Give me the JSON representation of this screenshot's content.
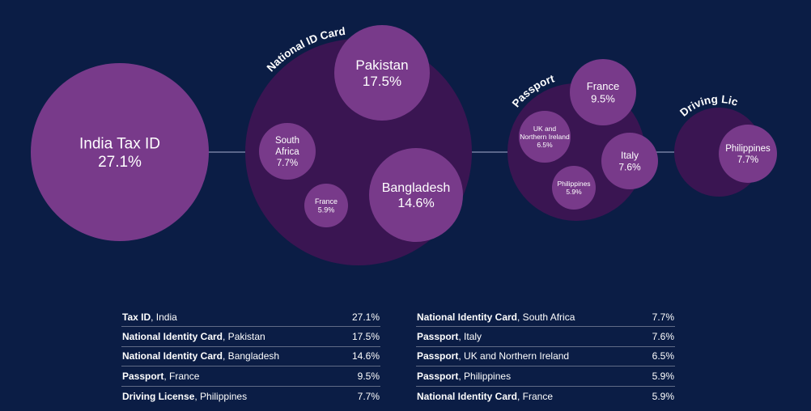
{
  "colors": {
    "background": "#0b1d45",
    "group_bubble": "#3a1552",
    "item_bubble": "#783a8a",
    "connector": "#8a93b5",
    "text": "#ffffff"
  },
  "chart_data": {
    "type": "bubble",
    "groups": [
      {
        "name": "",
        "items": [
          {
            "label": "India Tax ID",
            "value": 27.1,
            "value_label": "27.1%"
          }
        ]
      },
      {
        "name": "National ID Card",
        "items": [
          {
            "label": "Pakistan",
            "value": 17.5,
            "value_label": "17.5%"
          },
          {
            "label": "South Africa",
            "value": 7.7,
            "value_label": "7.7%"
          },
          {
            "label": "France",
            "value": 5.9,
            "value_label": "5.9%"
          },
          {
            "label": "Bangladesh",
            "value": 14.6,
            "value_label": "14.6%"
          }
        ]
      },
      {
        "name": "Passport",
        "items": [
          {
            "label": "France",
            "value": 9.5,
            "value_label": "9.5%"
          },
          {
            "label": "UK and Northern Ireland",
            "value": 6.5,
            "value_label": "6.5%"
          },
          {
            "label": "Italy",
            "value": 7.6,
            "value_label": "7.6%"
          },
          {
            "label": "Philippines",
            "value": 5.9,
            "value_label": "5.9%"
          }
        ]
      },
      {
        "name": "Driving License",
        "items": [
          {
            "label": "Philippines",
            "value": 7.7,
            "value_label": "7.7%"
          }
        ]
      }
    ]
  },
  "table": {
    "left": [
      {
        "bold": "Tax ID",
        "rest": ", India",
        "value": "27.1%"
      },
      {
        "bold": "National Identity Card",
        "rest": ", Pakistan",
        "value": "17.5%"
      },
      {
        "bold": "National Identity Card",
        "rest": ", Bangladesh",
        "value": "14.6%"
      },
      {
        "bold": "Passport",
        "rest": ", France",
        "value": "9.5%"
      },
      {
        "bold": "Driving License",
        "rest": ", Philippines",
        "value": "7.7%"
      }
    ],
    "right": [
      {
        "bold": "National Identity Card",
        "rest": ", South Africa",
        "value": "7.7%"
      },
      {
        "bold": "Passport",
        "rest": ", Italy",
        "value": "7.6%"
      },
      {
        "bold": "Passport",
        "rest": ", UK and Northern Ireland",
        "value": "6.5%"
      },
      {
        "bold": "Passport",
        "rest": ", Philippines",
        "value": "5.9%"
      },
      {
        "bold": "National Identity Card",
        "rest": ", France",
        "value": "5.9%"
      }
    ]
  }
}
